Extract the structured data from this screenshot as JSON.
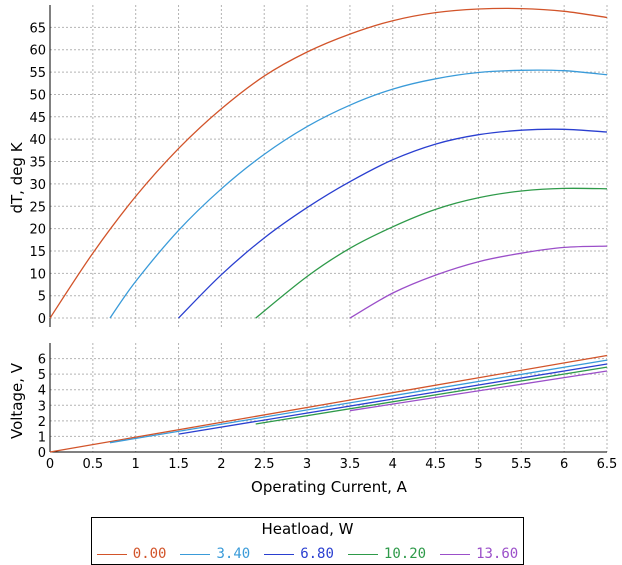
{
  "chart_data": [
    {
      "type": "line",
      "ylabel": "dT, deg K",
      "xlim": [
        0,
        6.5
      ],
      "ylim": [
        -2,
        70
      ],
      "yticks": [
        0,
        5,
        10,
        15,
        20,
        25,
        30,
        35,
        40,
        45,
        50,
        55,
        60,
        65
      ],
      "grid": true,
      "series": [
        {
          "name": "0.00",
          "color": "#d2542a",
          "x": [
            0,
            0.5,
            1.0,
            1.5,
            2.0,
            2.5,
            3.0,
            3.5,
            4.0,
            4.5,
            5.0,
            5.5,
            6.0,
            6.5
          ],
          "y": [
            0,
            14.5,
            27.2,
            37.9,
            46.8,
            54.1,
            59.5,
            63.5,
            66.5,
            68.3,
            69.1,
            69.2,
            68.6,
            67.2
          ]
        },
        {
          "name": "3.40",
          "color": "#3a9bd9",
          "x": [
            0.7,
            1.0,
            1.5,
            2.0,
            2.5,
            3.0,
            3.5,
            4.0,
            4.5,
            5.0,
            5.5,
            6.0,
            6.5
          ],
          "y": [
            0,
            8.2,
            19.6,
            28.9,
            36.6,
            42.8,
            47.6,
            51.2,
            53.5,
            54.9,
            55.4,
            55.3,
            54.4
          ]
        },
        {
          "name": "6.80",
          "color": "#2a3fd0",
          "x": [
            1.5,
            2.0,
            2.5,
            3.0,
            3.5,
            4.0,
            4.5,
            5.0,
            5.5,
            6.0,
            6.5
          ],
          "y": [
            0,
            9.7,
            17.9,
            24.7,
            30.5,
            35.4,
            38.9,
            41.0,
            42.0,
            42.2,
            41.6
          ]
        },
        {
          "name": "10.20",
          "color": "#2e9a49",
          "x": [
            2.4,
            3.0,
            3.5,
            4.0,
            4.5,
            5.0,
            5.5,
            6.0,
            6.5
          ],
          "y": [
            0,
            9.3,
            15.6,
            20.4,
            24.3,
            26.9,
            28.4,
            29.0,
            28.9
          ]
        },
        {
          "name": "13.60",
          "color": "#9b4fc9",
          "x": [
            3.5,
            4.0,
            4.5,
            5.0,
            5.5,
            6.0,
            6.5
          ],
          "y": [
            0,
            5.6,
            9.6,
            12.6,
            14.5,
            15.8,
            16.1
          ]
        }
      ]
    },
    {
      "type": "line",
      "ylabel": "Voltage, V",
      "xlabel": "Operating Current, A",
      "xlim": [
        0,
        6.5
      ],
      "ylim": [
        0,
        7
      ],
      "xticks": [
        0,
        0.5,
        1,
        1.5,
        2,
        2.5,
        3,
        3.5,
        4,
        4.5,
        5,
        5.5,
        6,
        6.5
      ],
      "yticks": [
        0,
        1,
        2,
        3,
        4,
        5,
        6
      ],
      "grid": true,
      "series": [
        {
          "name": "0.00",
          "color": "#d2542a",
          "x": [
            0,
            6.5
          ],
          "y": [
            0,
            6.2
          ]
        },
        {
          "name": "3.40",
          "color": "#3a9bd9",
          "x": [
            0.7,
            6.5
          ],
          "y": [
            0.6,
            5.9
          ]
        },
        {
          "name": "6.80",
          "color": "#2a3fd0",
          "x": [
            1.5,
            6.5
          ],
          "y": [
            1.15,
            5.65
          ]
        },
        {
          "name": "10.20",
          "color": "#2e9a49",
          "x": [
            2.4,
            6.5
          ],
          "y": [
            1.8,
            5.45
          ]
        },
        {
          "name": "13.60",
          "color": "#9b4fc9",
          "x": [
            3.5,
            6.5
          ],
          "y": [
            2.65,
            5.2
          ]
        }
      ]
    }
  ],
  "legend": {
    "title": "Heatload, W",
    "items": [
      {
        "label": "0.00",
        "color": "#d2542a"
      },
      {
        "label": "3.40",
        "color": "#3a9bd9"
      },
      {
        "label": "6.80",
        "color": "#2a3fd0"
      },
      {
        "label": "10.20",
        "color": "#2e9a49"
      },
      {
        "label": "13.60",
        "color": "#9b4fc9"
      }
    ]
  }
}
